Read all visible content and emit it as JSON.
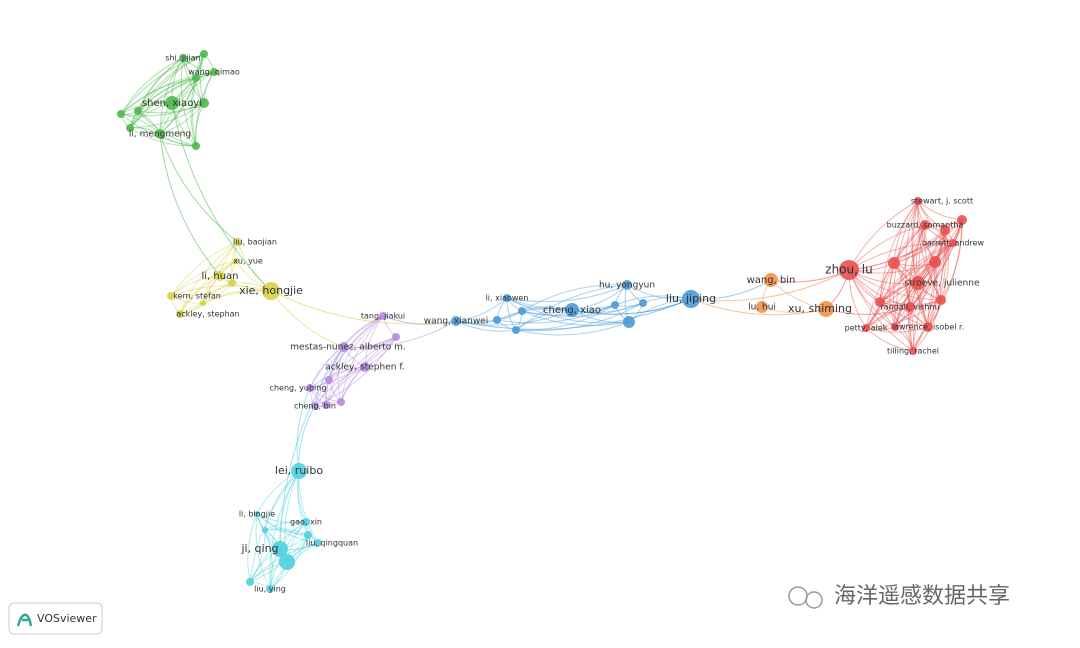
{
  "clusters": [
    {
      "color": "#4cb84c",
      "nodes": [
        "shi, jijian",
        "wang, qimao",
        "shen, xiaoyi",
        "li, mengmeng"
      ]
    },
    {
      "color": "#d6d14a",
      "nodes": [
        "liu, baojian",
        "xu, yue",
        "li, huan",
        "xie, hongjie",
        "kern, stefan",
        "ackley, stephan"
      ]
    },
    {
      "color": "#b38de0",
      "nodes": [
        "tang, jiakui",
        "mestas-nunez, alberto m.",
        "ackley, stephen f.",
        "cheng, yubing",
        "cheng, bin"
      ]
    },
    {
      "color": "#4fd0de",
      "nodes": [
        "lei, ruibo",
        "li, bingjie",
        "gao, xin",
        "ji, qing",
        "liu, qingquan",
        "liu, ying"
      ]
    },
    {
      "color": "#4a9ad6",
      "nodes": [
        "wang, xianwei",
        "li, xiaowen",
        "cheng, xiao",
        "hu, yongyun",
        "liu, jiping"
      ]
    },
    {
      "color": "#f0924a",
      "nodes": [
        "wang, bin",
        "lu, hui",
        "xu, shiming"
      ]
    },
    {
      "color": "#e8504f",
      "nodes": [
        "stewart, j. scott",
        "buzzard, samantha",
        "barrett, andrew",
        "zhou, lu",
        "stroeve, julienne",
        "randall, vishnu",
        "petty, alek",
        "lawrence, isobel r.",
        "tilling, rachel"
      ]
    }
  ],
  "logo": "VOSviewer",
  "watermark": "海洋遥感数据共享"
}
